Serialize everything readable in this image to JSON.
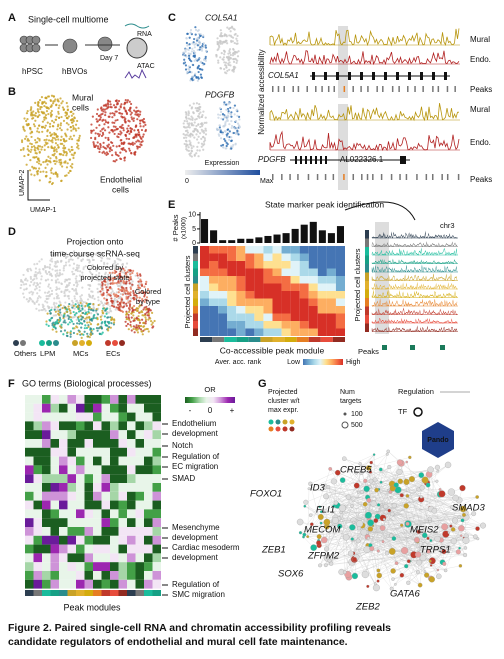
{
  "figure": {
    "a": {
      "label": "A",
      "title": "Single-cell multiome",
      "hpsc": "hPSC",
      "hbvos": "hBVOs",
      "day": "Day 7",
      "rna": "RNA",
      "atac": "ATAC"
    },
    "b": {
      "label": "B",
      "mural": [
        "Mural",
        "cells"
      ],
      "endothelial": [
        "Endothelial",
        "cells"
      ],
      "umap2": "UMAP-2",
      "umap1": "UMAP-1"
    },
    "c": {
      "label": "C",
      "gene1": "COL5A1",
      "gene2": "PDGFB",
      "expression": "Expression",
      "expr_low": "0",
      "expr_high": "Max",
      "ylabel": "Normalized accessibility",
      "tracks1": [
        "Mural",
        "Endo.",
        "Peaks"
      ],
      "locus1": "COL5A1",
      "tracks2": [
        "Mural",
        "Endo.",
        "Peaks"
      ],
      "locus2": [
        "PDGFB",
        "AL022326.1"
      ]
    },
    "d": {
      "label": "D",
      "title": [
        "Projection onto",
        "time-course scRNA-seq"
      ],
      "state": [
        "Colored by",
        "projected state"
      ],
      "bytype": [
        "Colored",
        "by type"
      ],
      "legend": [
        "Others",
        "LPM",
        "MCs",
        "ECs"
      ]
    },
    "e": {
      "label": "E",
      "title": "State marker peak identification",
      "chart_data": {
        "type": "bar",
        "ylabel": "# Peaks",
        "ylabel2": "(x1000)",
        "values": [
          8.5,
          4.5,
          1,
          1,
          1.5,
          1.5,
          2,
          2.5,
          3,
          3.5,
          5,
          6.5,
          7.5,
          4.5,
          3.5,
          6
        ],
        "ylim": [
          0,
          11
        ],
        "yticks": [
          0,
          5,
          10
        ],
        "color": "#111111"
      },
      "rows_label": "Projected cell clusters",
      "xlabel": "Co-accessible peak module",
      "scale": "Aver. acc. rank",
      "low": "Low",
      "high": "High",
      "chr": "chr3",
      "rows_label2": "Projected cell clusters",
      "peaks": "Peaks"
    },
    "f": {
      "label": "F",
      "title": "GO terms (Biological processes)",
      "or": "OR",
      "or_ticks": [
        "-",
        "0",
        "+"
      ],
      "terms": [
        "Endothelium",
        "development",
        "Notch",
        "Regulation of",
        "EC migration",
        "SMAD",
        "Mesenchyme",
        "development",
        "Cardiac mesoderm",
        "development",
        "Regulation of",
        "SMC migration"
      ],
      "xlabel": "Peak modules"
    },
    "g": {
      "label": "G",
      "legend_cluster": [
        "Projected",
        "cluster w/t",
        "max expr."
      ],
      "legend_targets": [
        "Num",
        "targets"
      ],
      "targets": [
        "100",
        "500"
      ],
      "regulation": "Regulation",
      "tf": "TF",
      "logo": "Pando",
      "genes": [
        "CREB5",
        "ID3",
        "FOXO1",
        "FLI1",
        "SMAD3",
        "MECOM",
        "MEIS2",
        "TRPS1",
        "ZEB1",
        "ZFPM2",
        "SOX6",
        "GATA6",
        "ZEB2"
      ]
    },
    "caption": [
      "Figure 2. Paired single-cell RNA and chromatin accessibility profiling reveals",
      "candidate regulators of endothelial and mural cell fate maintenance."
    ]
  }
}
